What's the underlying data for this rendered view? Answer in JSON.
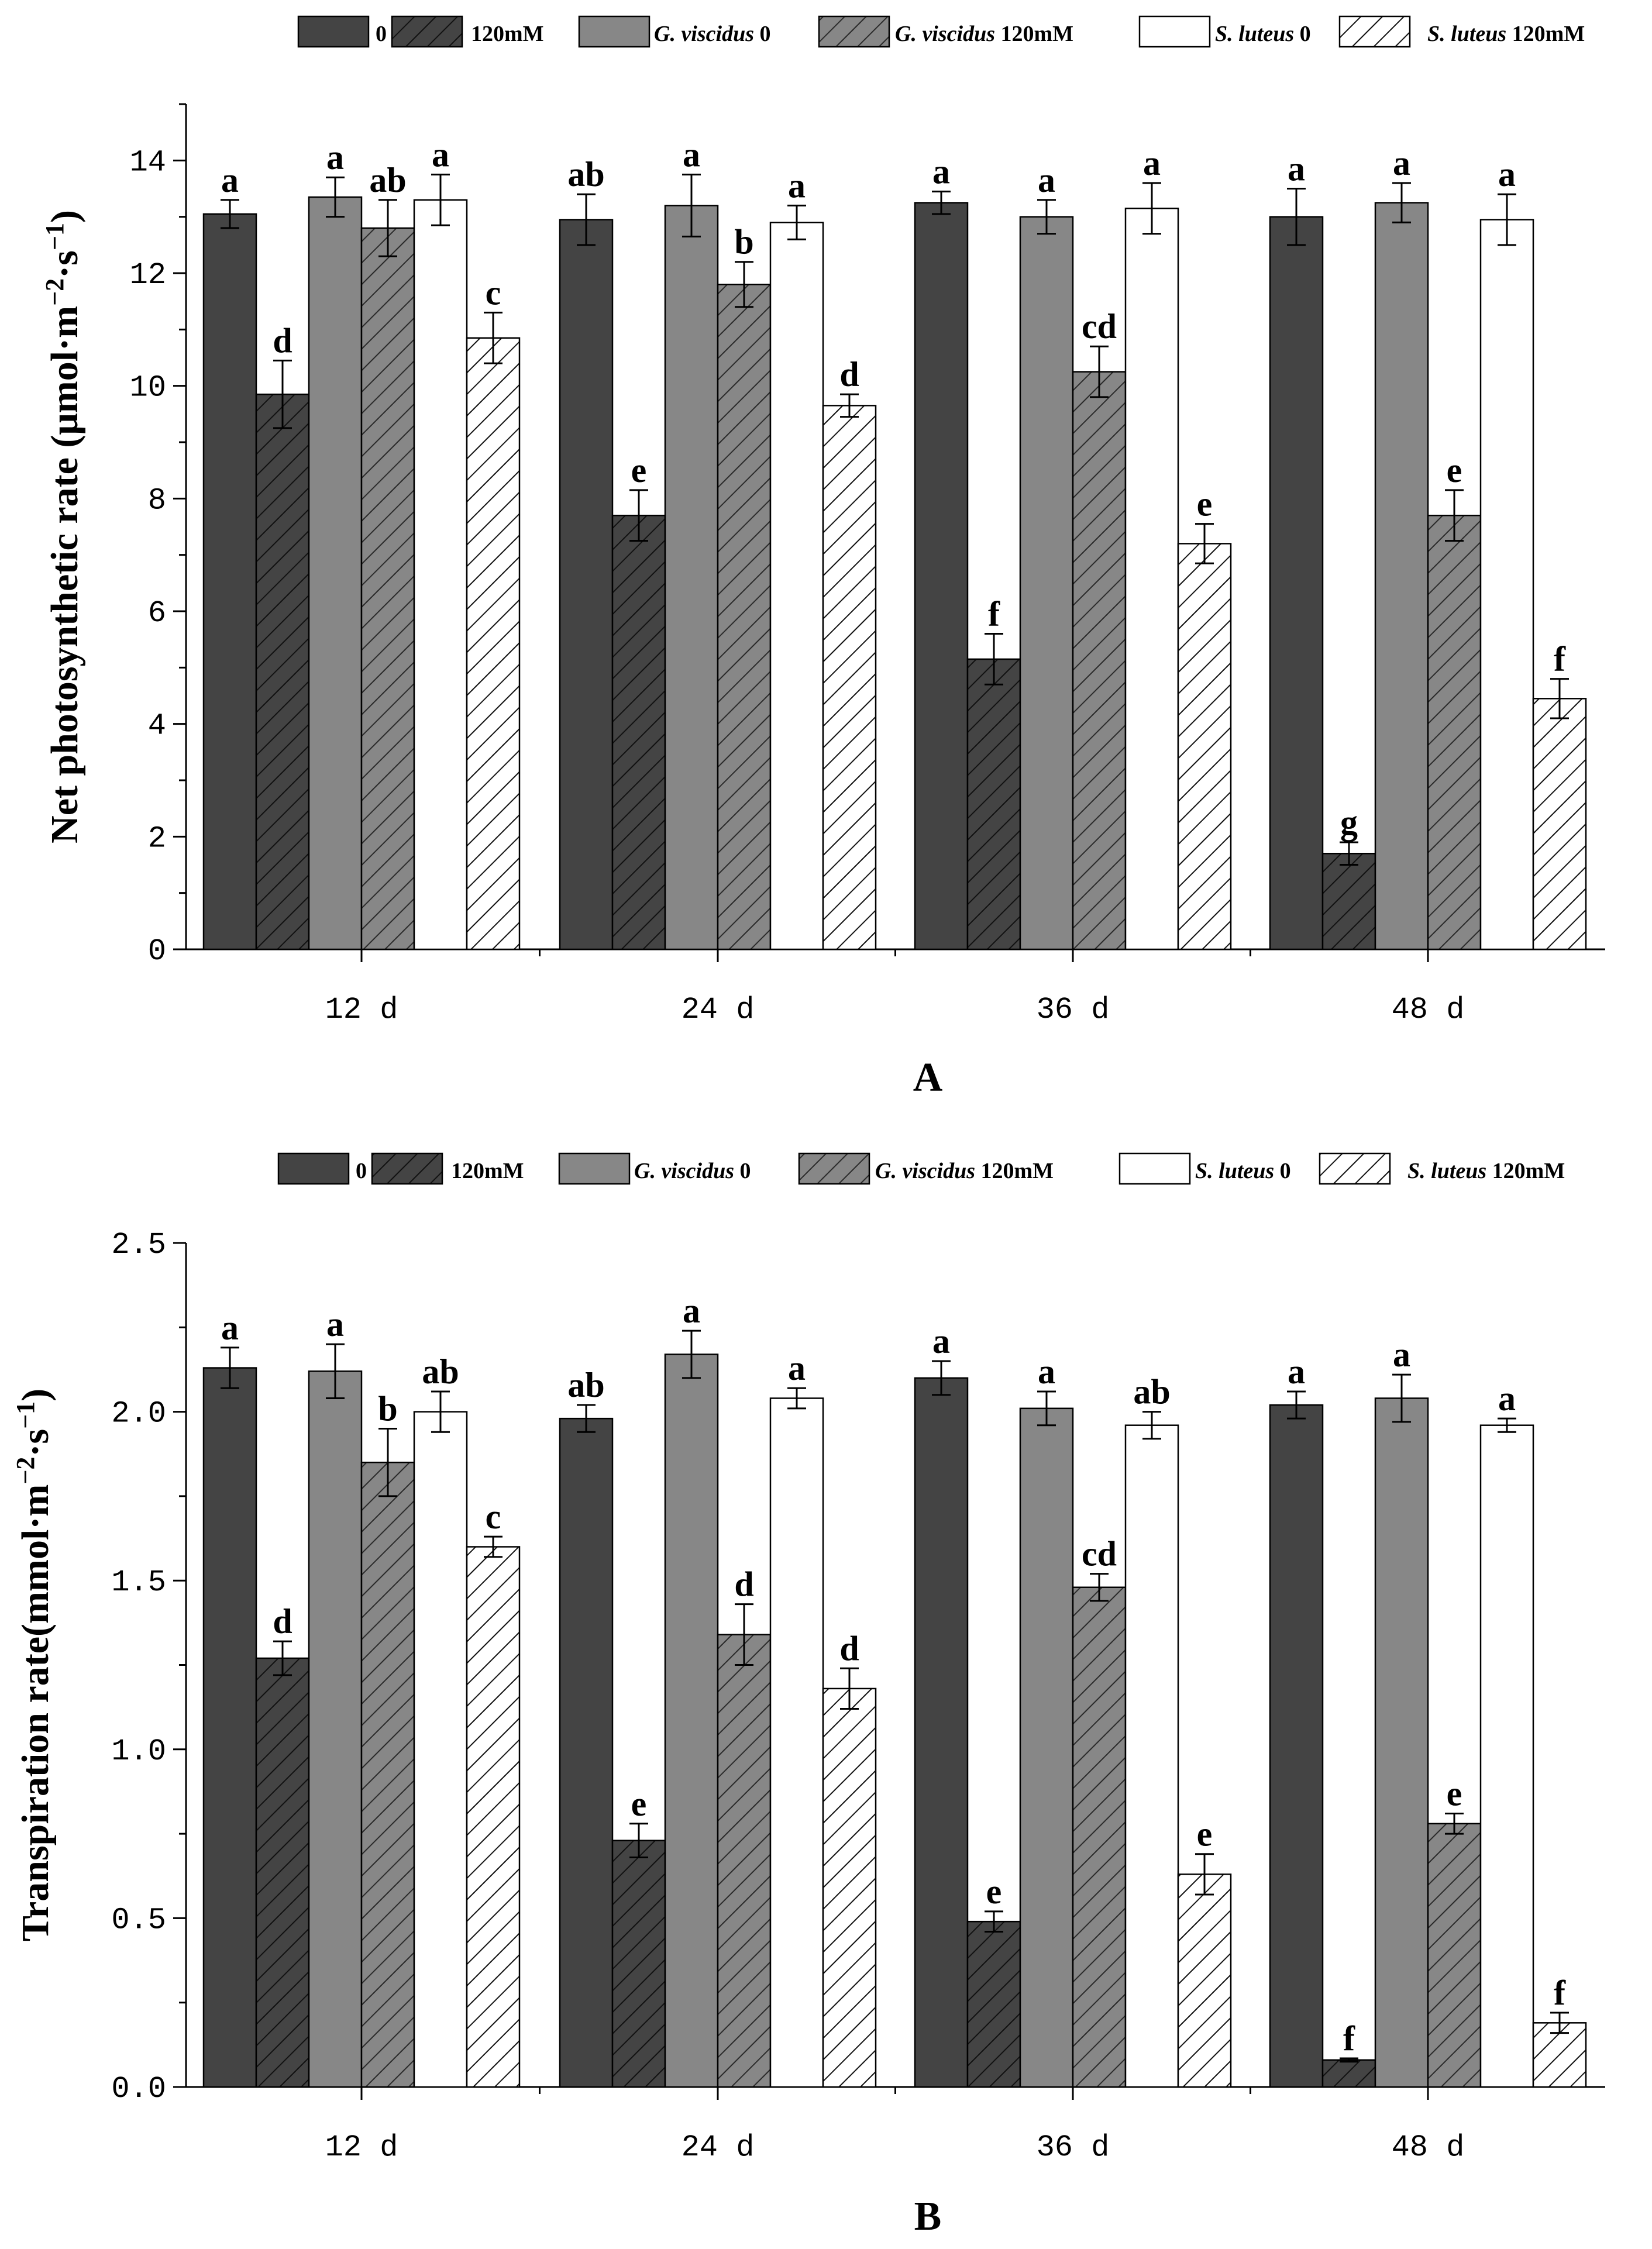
{
  "legend": [
    {
      "label": "0",
      "italic": "",
      "suffix": "",
      "fill": "#444444",
      "hatch": false
    },
    {
      "label": "120mM",
      "italic": "",
      "suffix": "",
      "fill": "#444444",
      "hatch": true
    },
    {
      "label": "",
      "italic": "G. viscidus",
      "suffix": " 0",
      "fill": "#878787",
      "hatch": false
    },
    {
      "label": "",
      "italic": "G. viscidus",
      "suffix": " 120mM",
      "fill": "#878787",
      "hatch": true
    },
    {
      "label": "",
      "italic": "S. luteus",
      "suffix": " 0",
      "fill": "#ffffff",
      "hatch": false
    },
    {
      "label": "",
      "italic": "S. luteus",
      "suffix": " 120mM",
      "fill": "#ffffff",
      "hatch": true
    }
  ],
  "chart_data": [
    {
      "type": "bar",
      "panel": "A",
      "ylabel_pre": "Net photosynthetic rate (μmol·m",
      "ylabel_sup1": "−2",
      "ylabel_mid": "·s",
      "ylabel_sup2": "−1",
      "ylabel_post": ")",
      "categories": [
        "12  d",
        "24  d",
        "36  d",
        "48  d"
      ],
      "ylim": [
        0,
        15
      ],
      "yticks": [
        0,
        2,
        4,
        6,
        8,
        10,
        12,
        14
      ],
      "ytick_labels": [
        "0",
        "2",
        "4",
        "6",
        "8",
        "10",
        "12",
        "14"
      ],
      "series": [
        {
          "name": "0",
          "values": [
            13.05,
            12.95,
            13.25,
            13.0
          ],
          "errors": [
            0.25,
            0.45,
            0.2,
            0.5
          ],
          "letters": [
            "a",
            "ab",
            "a",
            "a"
          ]
        },
        {
          "name": "120mM",
          "values": [
            9.85,
            7.7,
            5.15,
            1.7
          ],
          "errors": [
            0.6,
            0.45,
            0.45,
            0.2
          ],
          "letters": [
            "d",
            "e",
            "f",
            "g"
          ]
        },
        {
          "name": "G. viscidus 0",
          "values": [
            13.35,
            13.2,
            13.0,
            13.25
          ],
          "errors": [
            0.35,
            0.55,
            0.3,
            0.35
          ],
          "letters": [
            "a",
            "a",
            "a",
            "a"
          ]
        },
        {
          "name": "G. viscidus 120mM",
          "values": [
            12.8,
            11.8,
            10.25,
            7.7
          ],
          "errors": [
            0.5,
            0.4,
            0.45,
            0.45
          ],
          "letters": [
            "ab",
            "b",
            "cd",
            "e"
          ]
        },
        {
          "name": "S. luteus 0",
          "values": [
            13.3,
            12.9,
            13.15,
            12.95
          ],
          "errors": [
            0.45,
            0.3,
            0.45,
            0.45
          ],
          "letters": [
            "a",
            "a",
            "a",
            "a"
          ]
        },
        {
          "name": "S. luteus 120mM",
          "values": [
            10.85,
            9.65,
            7.2,
            4.45
          ],
          "errors": [
            0.45,
            0.2,
            0.35,
            0.35
          ],
          "letters": [
            "c",
            "d",
            "e",
            "f"
          ]
        }
      ]
    },
    {
      "type": "bar",
      "panel": "B",
      "ylabel_pre": "Transpiration rate(mmol·m",
      "ylabel_sup1": "−2",
      "ylabel_mid": "·s",
      "ylabel_sup2": "−1",
      "ylabel_post": ")",
      "categories": [
        "12  d",
        "24  d",
        "36  d",
        "48  d"
      ],
      "ylim": [
        0,
        2.5
      ],
      "yticks": [
        0,
        0.5,
        1.0,
        1.5,
        2.0,
        2.5
      ],
      "ytick_labels": [
        "0.0",
        "0.5",
        "1.0",
        "1.5",
        "2.0",
        "2.5"
      ],
      "series": [
        {
          "name": "0",
          "values": [
            2.13,
            1.98,
            2.1,
            2.02
          ],
          "errors": [
            0.06,
            0.04,
            0.05,
            0.04
          ],
          "letters": [
            "a",
            "ab",
            "a",
            "a"
          ]
        },
        {
          "name": "120mM",
          "values": [
            1.27,
            0.73,
            0.49,
            0.08
          ],
          "errors": [
            0.05,
            0.05,
            0.03,
            0.005
          ],
          "letters": [
            "d",
            "e",
            "e",
            "f"
          ]
        },
        {
          "name": "G. viscidus 0",
          "values": [
            2.12,
            2.17,
            2.01,
            2.04
          ],
          "errors": [
            0.08,
            0.07,
            0.05,
            0.07
          ],
          "letters": [
            "a",
            "a",
            "a",
            "a"
          ]
        },
        {
          "name": "G. viscidus 120mM",
          "values": [
            1.85,
            1.34,
            1.48,
            0.78
          ],
          "errors": [
            0.1,
            0.09,
            0.04,
            0.03
          ],
          "letters": [
            "b",
            "d",
            "cd",
            "e"
          ]
        },
        {
          "name": "S. luteus 0",
          "values": [
            2.0,
            2.04,
            1.96,
            1.96
          ],
          "errors": [
            0.06,
            0.03,
            0.04,
            0.02
          ],
          "letters": [
            "ab",
            "a",
            "ab",
            "a"
          ]
        },
        {
          "name": "S. luteus 120mM",
          "values": [
            1.6,
            1.18,
            0.63,
            0.19
          ],
          "errors": [
            0.03,
            0.06,
            0.06,
            0.03
          ],
          "letters": [
            "c",
            "d",
            "e",
            "f"
          ]
        }
      ]
    }
  ]
}
